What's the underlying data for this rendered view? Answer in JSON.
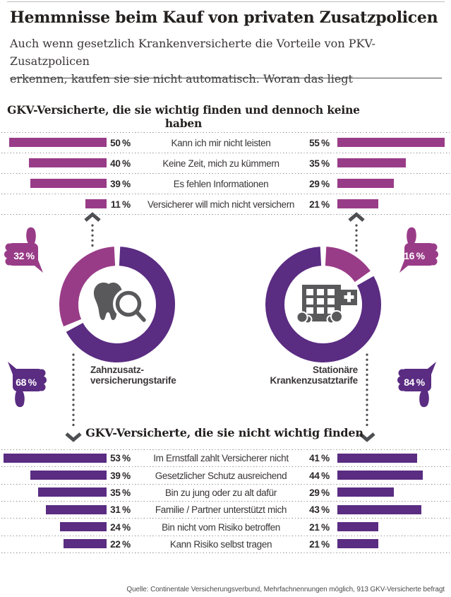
{
  "page": {
    "title": "Hemmnisse beim Kauf von privaten Zusatzpolicen",
    "subtitle_line1": "Auch wenn gesetzlich Krankenversicherte die Vorteile von PKV-Zusatzpolicen",
    "subtitle_line2": "erkennen, kaufen sie sie nicht automatisch. Woran das liegt",
    "source": "Quelle: Continentale Versicherungsverbund, Mehrfachnennungen möglich, 913 GKV-Versicherte befragt"
  },
  "colors": {
    "magenta": "#993c88",
    "purple": "#5a2c82",
    "icon_gray": "#59595b",
    "arrow_gray": "#4e4f53"
  },
  "chart_data": [
    {
      "id": "barriers-important",
      "type": "bar",
      "title": "GKV-Versicherte, die sie wichtig finden und dennoch keine haben",
      "unit": "%",
      "color": "#993c88",
      "categories": [
        "Kann ich mir nicht leisten",
        "Keine Zeit, mich zu kümmern",
        "Es fehlen Informationen",
        "Versicherer will mich nicht versichern"
      ],
      "series": [
        {
          "name": "Zahnzusatz-versicherungstarife",
          "values": [
            50,
            40,
            39,
            11
          ]
        },
        {
          "name": "Stationäre Krankenzusatztarife",
          "values": [
            55,
            35,
            29,
            21
          ]
        }
      ]
    },
    {
      "id": "barriers-not-important",
      "type": "bar",
      "title": "GKV-Versicherte, die sie nicht wichtig finden",
      "unit": "%",
      "color": "#5a2c82",
      "categories": [
        "Im Ernstfall zahlt Versicherer nicht",
        "Gesetzlicher Schutz ausreichend",
        "Bin zu jung oder zu alt dafür",
        "Familie / Partner unterstützt mich",
        "Bin nicht vom Risiko betroffen",
        "Kann Risiko selbst tragen"
      ],
      "series": [
        {
          "name": "Zahnzusatz-versicherungstarife",
          "values": [
            53,
            39,
            35,
            31,
            24,
            22
          ]
        },
        {
          "name": "Stationäre Krankenzusatztarife",
          "values": [
            41,
            44,
            29,
            43,
            21,
            21
          ]
        }
      ]
    },
    {
      "id": "donut-dental",
      "type": "donut",
      "label_lines": [
        "Zahnzusatz-",
        "versicherungstarife"
      ],
      "center_icon": "tooth-magnifier-icon",
      "unit": "%",
      "slices": [
        {
          "name": "thumbs-up",
          "value": 32,
          "color": "#993c88",
          "icon": "thumbs-up-icon"
        },
        {
          "name": "thumbs-down",
          "value": 68,
          "color": "#5a2c82",
          "icon": "thumbs-down-icon"
        }
      ]
    },
    {
      "id": "donut-hospital",
      "type": "donut",
      "label_lines": [
        "Stationäre",
        "Krankenzusatztarife"
      ],
      "center_icon": "hospital-icon",
      "unit": "%",
      "slices": [
        {
          "name": "thumbs-up",
          "value": 16,
          "color": "#993c88",
          "icon": "thumbs-up-icon"
        },
        {
          "name": "thumbs-down",
          "value": 84,
          "color": "#5a2c82",
          "icon": "thumbs-down-icon"
        }
      ]
    }
  ]
}
